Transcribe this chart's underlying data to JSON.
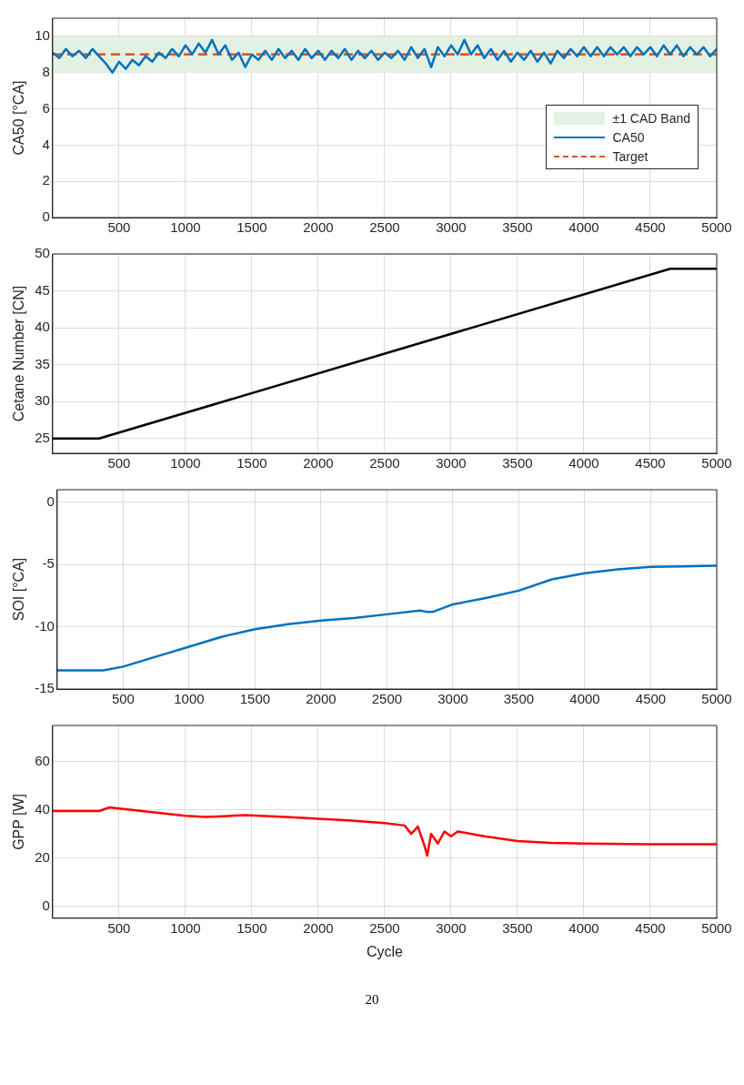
{
  "chart_data": [
    {
      "type": "line",
      "ylabel": "CA50 [°CA]",
      "xlim": [
        0,
        5000
      ],
      "xticks": [
        500,
        1000,
        1500,
        2000,
        2500,
        3000,
        3500,
        4000,
        4500,
        5000
      ],
      "ylim": [
        0,
        11
      ],
      "yticks": [
        0,
        2,
        4,
        6,
        8,
        10
      ],
      "grid": true,
      "legend": "right",
      "marker": "none",
      "bands": [
        {
          "axis": "y",
          "from": 8,
          "to": 10,
          "label": "±1 CAD Band",
          "color": "#e3f1e3"
        }
      ],
      "ref_lines": [
        {
          "axis": "y",
          "value": 9,
          "label": "Target",
          "color": "#d95319",
          "line_style": "dashed"
        }
      ],
      "series": [
        {
          "name": "CA50",
          "color": "#0072bd",
          "x": [
            0,
            50,
            100,
            150,
            200,
            250,
            300,
            350,
            400,
            450,
            500,
            550,
            600,
            650,
            700,
            750,
            800,
            850,
            900,
            950,
            1000,
            1050,
            1100,
            1150,
            1200,
            1250,
            1300,
            1350,
            1400,
            1450,
            1500,
            1550,
            1600,
            1650,
            1700,
            1750,
            1800,
            1850,
            1900,
            1950,
            2000,
            2050,
            2100,
            2150,
            2200,
            2250,
            2300,
            2350,
            2400,
            2450,
            2500,
            2550,
            2600,
            2650,
            2700,
            2750,
            2800,
            2850,
            2900,
            2950,
            3000,
            3050,
            3100,
            3150,
            3200,
            3250,
            3300,
            3350,
            3400,
            3450,
            3500,
            3550,
            3600,
            3650,
            3700,
            3750,
            3800,
            3850,
            3900,
            3950,
            4000,
            4050,
            4100,
            4150,
            4200,
            4250,
            4300,
            4350,
            4400,
            4450,
            4500,
            4550,
            4600,
            4650,
            4700,
            4750,
            4800,
            4850,
            4900,
            4950,
            5000
          ],
          "values": [
            9.1,
            8.8,
            9.3,
            8.9,
            9.2,
            8.8,
            9.3,
            8.9,
            8.5,
            8.0,
            8.6,
            8.2,
            8.7,
            8.4,
            8.9,
            8.6,
            9.1,
            8.8,
            9.3,
            8.9,
            9.5,
            9.0,
            9.6,
            9.1,
            9.8,
            9.0,
            9.5,
            8.7,
            9.1,
            8.3,
            9.0,
            8.7,
            9.2,
            8.7,
            9.3,
            8.8,
            9.2,
            8.7,
            9.3,
            8.8,
            9.2,
            8.7,
            9.2,
            8.8,
            9.3,
            8.7,
            9.2,
            8.8,
            9.2,
            8.7,
            9.1,
            8.8,
            9.2,
            8.7,
            9.4,
            8.8,
            9.3,
            8.3,
            9.4,
            8.9,
            9.5,
            9.0,
            9.8,
            9.0,
            9.5,
            8.8,
            9.3,
            8.7,
            9.2,
            8.6,
            9.1,
            8.7,
            9.2,
            8.6,
            9.1,
            8.5,
            9.2,
            8.8,
            9.3,
            8.9,
            9.4,
            8.9,
            9.4,
            8.9,
            9.4,
            9.0,
            9.4,
            8.9,
            9.4,
            9.0,
            9.4,
            8.9,
            9.5,
            9.0,
            9.5,
            8.9,
            9.4,
            9.0,
            9.4,
            8.9,
            9.3
          ]
        }
      ]
    },
    {
      "type": "line",
      "ylabel": "Cetane Number [CN]",
      "xlim": [
        0,
        5000
      ],
      "xticks": [
        500,
        1000,
        1500,
        2000,
        2500,
        3000,
        3500,
        4000,
        4500,
        5000
      ],
      "ylim": [
        23,
        50
      ],
      "yticks": [
        25,
        30,
        35,
        40,
        45,
        50
      ],
      "grid": true,
      "marker": "none",
      "series": [
        {
          "color": "#000000",
          "x": [
            0,
            350,
            4650,
            5000
          ],
          "values": [
            25,
            25,
            48,
            48
          ]
        }
      ]
    },
    {
      "type": "line",
      "ylabel": "SOI [°CA]",
      "xlim": [
        0,
        5000
      ],
      "xticks": [
        500,
        1000,
        1500,
        2000,
        2500,
        3000,
        3500,
        4000,
        4500,
        5000
      ],
      "ylim": [
        -15,
        1
      ],
      "yticks": [
        -15,
        -10,
        -5,
        0
      ],
      "grid": true,
      "marker": "none",
      "series": [
        {
          "color": "#0072bd",
          "x": [
            0,
            250,
            350,
            500,
            750,
            1000,
            1250,
            1500,
            1750,
            2000,
            2250,
            2500,
            2750,
            2800,
            2850,
            3000,
            3250,
            3500,
            3750,
            4000,
            4250,
            4500,
            4750,
            5000
          ],
          "values": [
            -13.5,
            -13.5,
            -13.5,
            -13.2,
            -12.4,
            -11.6,
            -10.8,
            -10.2,
            -9.8,
            -9.5,
            -9.3,
            -9.0,
            -8.7,
            -8.8,
            -8.8,
            -8.2,
            -7.7,
            -7.1,
            -6.2,
            -5.7,
            -5.4,
            -5.2,
            -5.15,
            -5.1
          ]
        }
      ]
    },
    {
      "type": "line",
      "ylabel": "GPP [W]",
      "xlabel": "Cycle",
      "xlim": [
        0,
        5000
      ],
      "xticks": [
        500,
        1000,
        1500,
        2000,
        2500,
        3000,
        3500,
        4000,
        4500,
        5000
      ],
      "ylim": [
        -5,
        75
      ],
      "yticks": [
        0,
        20,
        40,
        60
      ],
      "grid": true,
      "marker": "none",
      "annotations": [
        "20"
      ],
      "series": [
        {
          "color": "#ff0000",
          "x": [
            0,
            350,
            430,
            500,
            750,
            1000,
            1150,
            1250,
            1450,
            1750,
            2000,
            2250,
            2500,
            2650,
            2700,
            2750,
            2800,
            2820,
            2850,
            2900,
            2950,
            3000,
            3050,
            3250,
            3500,
            3750,
            4000,
            4500,
            5000
          ],
          "values": [
            39.5,
            39.5,
            41,
            40.5,
            39,
            37.5,
            37,
            37.2,
            37.8,
            37,
            36.3,
            35.5,
            34.5,
            33.5,
            30,
            33,
            25,
            21,
            30,
            26,
            31,
            29,
            31,
            29,
            27,
            26.3,
            26,
            25.7,
            25.7
          ]
        }
      ]
    }
  ]
}
